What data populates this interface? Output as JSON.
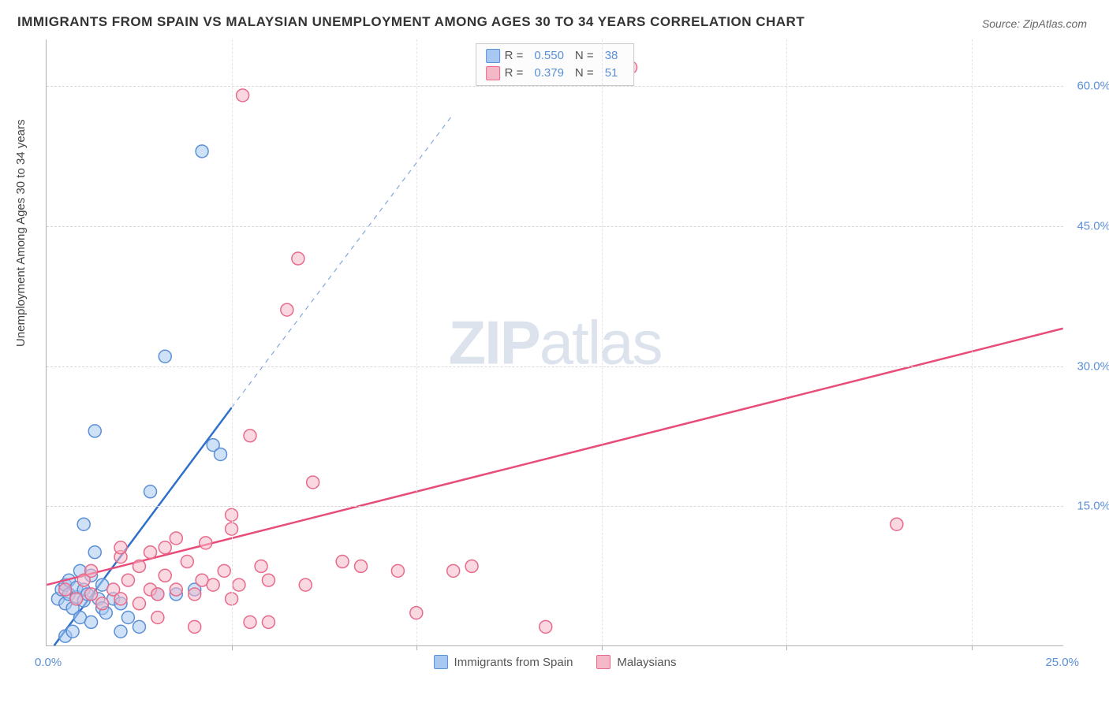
{
  "title": "IMMIGRANTS FROM SPAIN VS MALAYSIAN UNEMPLOYMENT AMONG AGES 30 TO 34 YEARS CORRELATION CHART",
  "source": "Source: ZipAtlas.com",
  "watermark": "ZIPatlas",
  "y_axis_title": "Unemployment Among Ages 30 to 34 years",
  "chart": {
    "type": "scatter",
    "xlim": [
      0,
      27.5
    ],
    "ylim": [
      0,
      65
    ],
    "x_origin_label": "0.0%",
    "x_end_label": "25.0%",
    "y_ticks": [
      15.0,
      30.0,
      45.0,
      60.0
    ],
    "y_tick_labels": [
      "15.0%",
      "30.0%",
      "45.0%",
      "60.0%"
    ],
    "x_ticks": [
      5,
      10,
      15,
      20,
      25
    ],
    "grid_color": "#d8d8d8",
    "background_color": "#ffffff",
    "axis_color": "#b0b0b0",
    "marker_radius": 8,
    "marker_stroke_width": 1.5,
    "line_width": 2.5,
    "point_opacity": 0.55
  },
  "series": [
    {
      "name": "Immigrants from Spain",
      "fill_color": "#a7c8f0",
      "stroke_color": "#5b8fd6",
      "line_color": "#2e6fc9",
      "r_value": "0.550",
      "n_value": "38",
      "regression": {
        "x1": 0.2,
        "y1": 0.0,
        "x2": 5.0,
        "y2": 25.5,
        "dash_x2": 11.0,
        "dash_y2": 57.0
      },
      "points": [
        [
          0.3,
          5.0
        ],
        [
          0.4,
          6.0
        ],
        [
          0.5,
          4.5
        ],
        [
          0.5,
          6.5
        ],
        [
          0.6,
          5.5
        ],
        [
          0.6,
          7.0
        ],
        [
          0.7,
          4.0
        ],
        [
          0.8,
          5.2
        ],
        [
          0.8,
          6.2
        ],
        [
          0.9,
          3.0
        ],
        [
          0.9,
          8.0
        ],
        [
          1.0,
          4.8
        ],
        [
          1.0,
          6.0
        ],
        [
          1.1,
          5.5
        ],
        [
          1.2,
          2.5
        ],
        [
          1.2,
          7.5
        ],
        [
          1.3,
          10.0
        ],
        [
          1.4,
          5.0
        ],
        [
          1.5,
          4.0
        ],
        [
          1.5,
          6.5
        ],
        [
          1.6,
          3.5
        ],
        [
          1.8,
          5.0
        ],
        [
          2.0,
          4.5
        ],
        [
          2.0,
          1.5
        ],
        [
          2.2,
          3.0
        ],
        [
          2.5,
          2.0
        ],
        [
          2.8,
          16.5
        ],
        [
          3.0,
          5.5
        ],
        [
          3.5,
          5.5
        ],
        [
          4.0,
          6.0
        ],
        [
          4.2,
          53.0
        ],
        [
          1.3,
          23.0
        ],
        [
          3.2,
          31.0
        ],
        [
          1.0,
          13.0
        ],
        [
          0.5,
          1.0
        ],
        [
          0.7,
          1.5
        ],
        [
          4.5,
          21.5
        ],
        [
          4.7,
          20.5
        ]
      ]
    },
    {
      "name": "Malaysians",
      "fill_color": "#f5b8c8",
      "stroke_color": "#e86a8a",
      "line_color": "#e84c78",
      "r_value": "0.379",
      "n_value": "51",
      "regression": {
        "x1": 0.0,
        "y1": 6.5,
        "x2": 27.5,
        "y2": 34.0
      },
      "points": [
        [
          0.5,
          6.0
        ],
        [
          0.8,
          5.0
        ],
        [
          1.0,
          7.0
        ],
        [
          1.2,
          5.5
        ],
        [
          1.2,
          8.0
        ],
        [
          1.5,
          4.5
        ],
        [
          1.8,
          6.0
        ],
        [
          2.0,
          9.5
        ],
        [
          2.0,
          5.0
        ],
        [
          2.2,
          7.0
        ],
        [
          2.5,
          8.5
        ],
        [
          2.5,
          4.5
        ],
        [
          2.8,
          6.0
        ],
        [
          2.8,
          10.0
        ],
        [
          3.0,
          5.5
        ],
        [
          3.0,
          3.0
        ],
        [
          3.2,
          7.5
        ],
        [
          3.2,
          10.5
        ],
        [
          3.5,
          6.0
        ],
        [
          3.8,
          9.0
        ],
        [
          4.0,
          5.5
        ],
        [
          4.0,
          2.0
        ],
        [
          4.2,
          7.0
        ],
        [
          4.5,
          6.5
        ],
        [
          4.8,
          8.0
        ],
        [
          5.0,
          5.0
        ],
        [
          5.0,
          12.5
        ],
        [
          5.2,
          6.5
        ],
        [
          5.5,
          2.5
        ],
        [
          5.5,
          22.5
        ],
        [
          5.0,
          14.0
        ],
        [
          5.8,
          8.5
        ],
        [
          6.0,
          7.0
        ],
        [
          6.0,
          2.5
        ],
        [
          6.5,
          36.0
        ],
        [
          6.8,
          41.5
        ],
        [
          7.0,
          6.5
        ],
        [
          7.2,
          17.5
        ],
        [
          8.0,
          9.0
        ],
        [
          8.5,
          8.5
        ],
        [
          9.5,
          8.0
        ],
        [
          10.0,
          3.5
        ],
        [
          11.0,
          8.0
        ],
        [
          11.5,
          8.5
        ],
        [
          13.5,
          2.0
        ],
        [
          5.3,
          59.0
        ],
        [
          15.8,
          62.0
        ],
        [
          23.0,
          13.0
        ],
        [
          3.5,
          11.5
        ],
        [
          4.3,
          11.0
        ],
        [
          2.0,
          10.5
        ]
      ]
    }
  ],
  "bottom_legend": [
    {
      "label": "Immigrants from Spain",
      "fill": "#a7c8f0",
      "stroke": "#5b8fd6"
    },
    {
      "label": "Malaysians",
      "fill": "#f5b8c8",
      "stroke": "#e86a8a"
    }
  ]
}
